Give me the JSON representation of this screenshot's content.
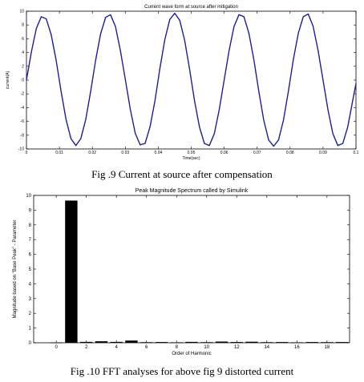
{
  "captions": {
    "fig9": "Fig .9 Current at source after compensation",
    "fig10": "Fig .10 FFT analyses for above fig 9 distorted current"
  },
  "chart_data": [
    {
      "type": "line",
      "title": "Current wave form at source after mitigation",
      "xlabel": "Time(sec)",
      "ylabel": "current(A)",
      "xlim": [
        0,
        0.1
      ],
      "ylim": [
        -10,
        10
      ],
      "xticks": [
        0,
        0.01,
        0.02,
        0.03,
        0.04,
        0.05,
        0.06,
        0.07,
        0.08,
        0.09,
        0.1
      ],
      "xtick_labels": [
        "0",
        "0.01",
        "0.02",
        "0.03",
        "0.04",
        "0.05",
        "0.06",
        "0.07",
        "0.08",
        "0.09",
        "0.1"
      ],
      "yticks": [
        -10,
        -8,
        -6,
        -4,
        -2,
        0,
        2,
        4,
        6,
        8,
        10
      ],
      "ytick_labels": [
        "-10",
        "-8",
        "-6",
        "-4",
        "-2",
        "0",
        "2",
        "4",
        "6",
        "8",
        "10"
      ],
      "grid": false,
      "line_color": "#1f1f8f",
      "series": [
        {
          "x": [
            0,
            0.0015,
            0.003,
            0.0045,
            0.006,
            0.0075,
            0.009,
            0.0105,
            0.012,
            0.0135,
            0.015,
            0.0165,
            0.018,
            0.0195,
            0.021,
            0.0225,
            0.024,
            0.0255,
            0.027,
            0.0285,
            0.03,
            0.0315,
            0.033,
            0.0345,
            0.036,
            0.0375,
            0.039,
            0.0405,
            0.042,
            0.0435,
            0.045,
            0.0465,
            0.048,
            0.0495,
            0.051,
            0.0525,
            0.054,
            0.0555,
            0.057,
            0.0585,
            0.06,
            0.0615,
            0.063,
            0.0645,
            0.066,
            0.0675,
            0.069,
            0.0705,
            0.072,
            0.0735,
            0.075,
            0.0765,
            0.078,
            0.0795,
            0.081,
            0.0825,
            0.084,
            0.0855,
            0.087,
            0.0885,
            0.09,
            0.0915,
            0.093,
            0.0945,
            0.096,
            0.0975,
            0.099,
            0.1
          ],
          "y": [
            0,
            4.1,
            7.5,
            9.2,
            8.9,
            6.6,
            2.9,
            -1.6,
            -5.7,
            -8.5,
            -9.5,
            -8.5,
            -5.7,
            -1.6,
            2.9,
            6.7,
            9.1,
            9.5,
            7.8,
            4.3,
            0.1,
            -4.2,
            -7.7,
            -9.4,
            -9.2,
            -6.8,
            -3.0,
            1.7,
            5.9,
            8.8,
            9.7,
            8.7,
            5.8,
            1.6,
            -3.0,
            -6.8,
            -9.2,
            -9.5,
            -7.8,
            -4.3,
            0.0,
            4.3,
            7.8,
            9.5,
            9.2,
            6.8,
            3.0,
            -1.6,
            -5.8,
            -8.7,
            -9.6,
            -8.7,
            -5.8,
            -1.6,
            3.0,
            6.8,
            9.2,
            9.6,
            7.8,
            4.3,
            0.0,
            -4.3,
            -7.8,
            -9.5,
            -9.2,
            -6.8,
            -3.0,
            -0.5
          ]
        }
      ]
    },
    {
      "type": "bar",
      "title": "Peak Magnitude Spectrum called by Simulink",
      "xlabel": "Order of Harmonic",
      "ylabel": "Magnitude based on \"Base Peak\" - Parameter",
      "xlim": [
        -1.5,
        19.5
      ],
      "ylim": [
        0,
        10
      ],
      "xticks": [
        0,
        2,
        4,
        6,
        8,
        10,
        12,
        14,
        16,
        18
      ],
      "xtick_labels": [
        "0",
        "2",
        "4",
        "6",
        "8",
        "10",
        "12",
        "14",
        "16",
        "18"
      ],
      "yticks": [
        0,
        1,
        2,
        3,
        4,
        5,
        6,
        7,
        8,
        9,
        10
      ],
      "ytick_labels": [
        "0",
        "1",
        "2",
        "3",
        "4",
        "5",
        "6",
        "7",
        "8",
        "9",
        "10"
      ],
      "grid": false,
      "bar_color": "#000000",
      "categories": [
        0,
        1,
        2,
        3,
        4,
        5,
        6,
        7,
        8,
        9,
        10,
        11,
        12,
        13,
        14,
        15,
        16,
        17,
        18,
        19
      ],
      "values": [
        0.02,
        9.65,
        0.06,
        0.1,
        0.06,
        0.15,
        0.04,
        0.05,
        0.03,
        0.06,
        0.04,
        0.08,
        0.05,
        0.07,
        0.04,
        0.05,
        0.03,
        0.05,
        0.04,
        0.05
      ]
    }
  ]
}
